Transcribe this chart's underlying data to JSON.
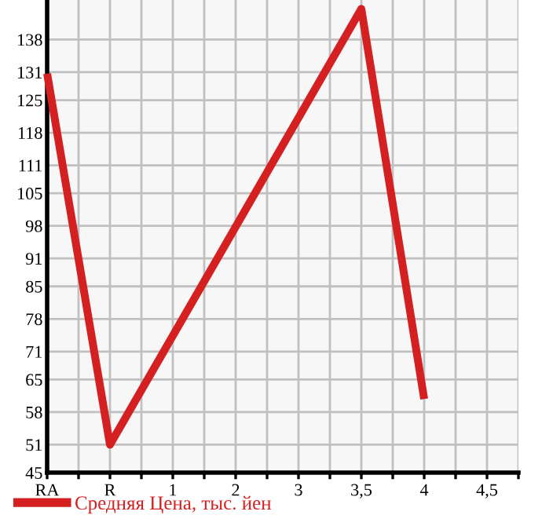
{
  "chart_data": {
    "type": "line",
    "categories": [
      "RA",
      "R",
      "1",
      "2",
      "3",
      "3,5",
      "4",
      "4,5"
    ],
    "series": [
      {
        "name": "Средняя Цена, тыс. йен",
        "color": "#d42020",
        "values": [
          130.7,
          51,
          null,
          null,
          null,
          144.6,
          60.8,
          null
        ]
      }
    ],
    "ylim": [
      45,
      146.5
    ],
    "yticks": [
      45,
      51,
      58,
      65,
      71,
      78,
      85,
      91,
      98,
      105,
      111,
      118,
      125,
      131,
      138
    ],
    "grid": true,
    "legend": "bottom",
    "marker": "none",
    "line_style": "solid"
  }
}
